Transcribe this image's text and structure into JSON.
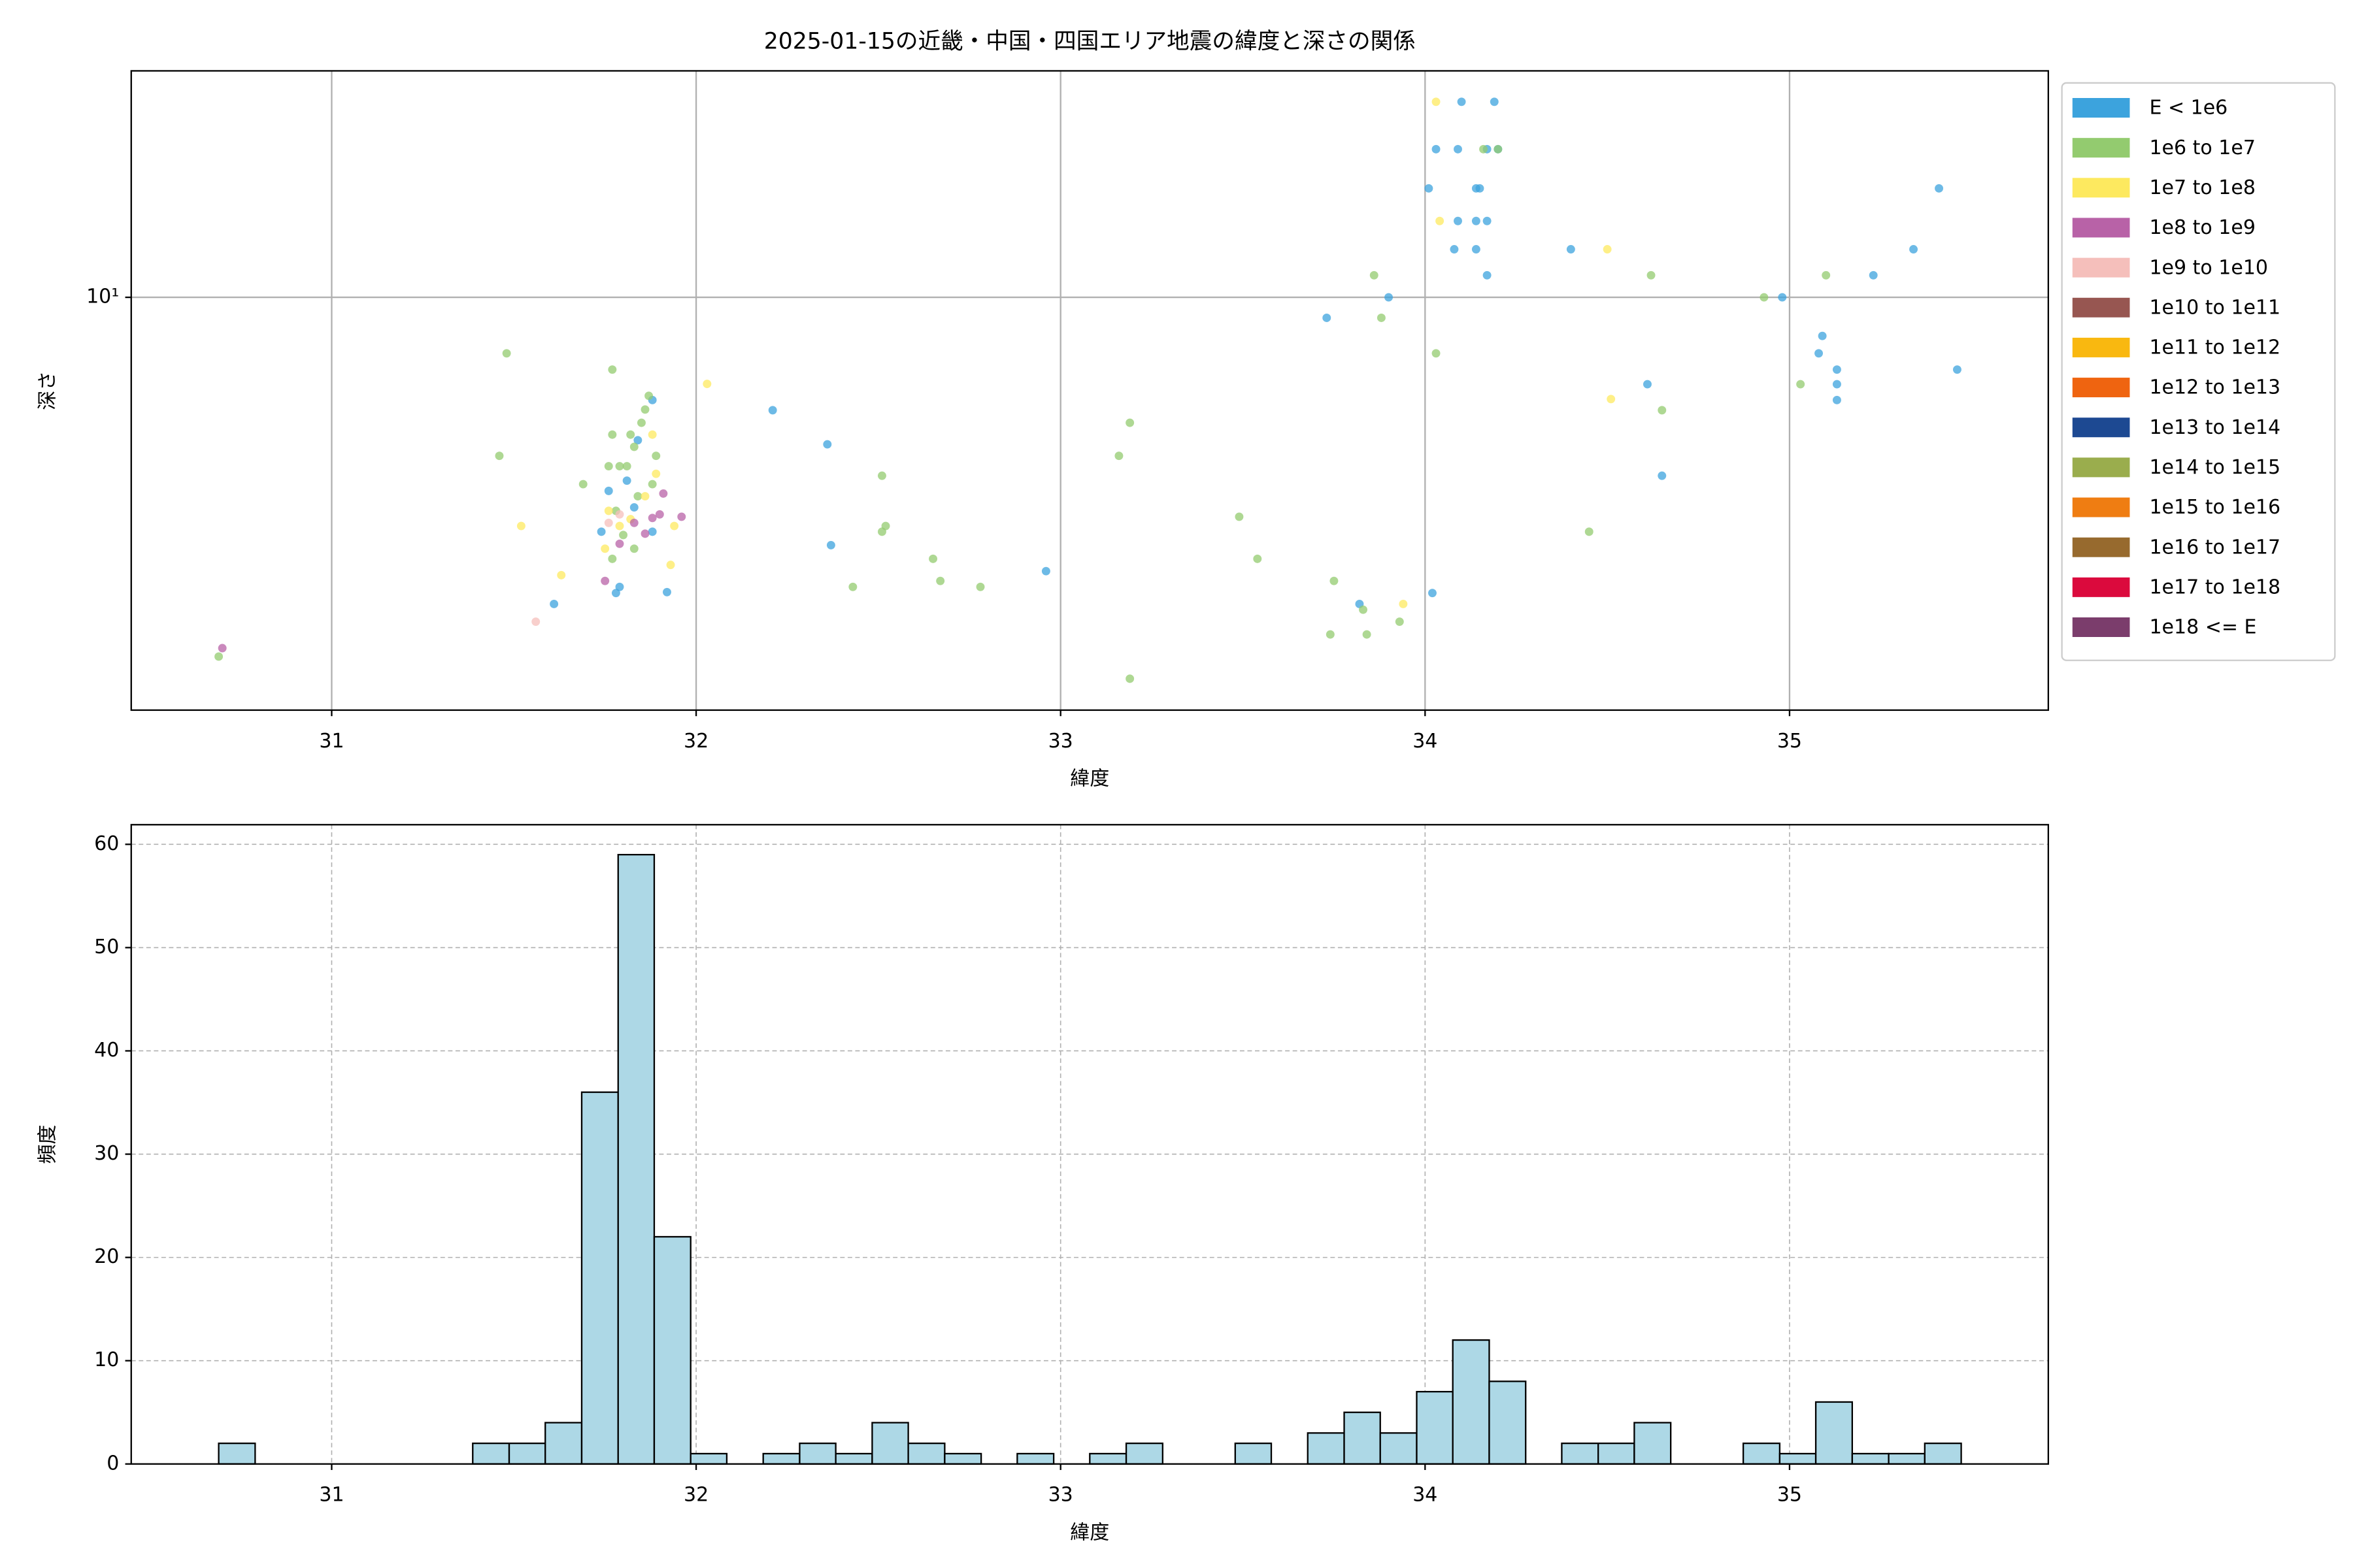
{
  "chart_data": [
    {
      "type": "scatter",
      "title": "2025-01-15の近畿・中国・四国エリア地震の緯度と深さの関係",
      "xlabel": "緯度",
      "ylabel": "深さ",
      "xlim": [
        30.45,
        35.71
      ],
      "xticks": [
        31,
        32,
        33,
        34,
        35
      ],
      "ylim": [
        1.2,
        32
      ],
      "ylog": true,
      "yticks": [
        {
          "value": 10,
          "label": "10¹"
        }
      ],
      "grid": true,
      "grid_style": "solid",
      "legend_loc": "outside upper right",
      "series": [
        {
          "name": "E < 1e6",
          "color": "#3ca3dd",
          "x": [
            34.1,
            34.19,
            34.03,
            34.09,
            34.17,
            34.2,
            34.01,
            34.14,
            34.15,
            34.09,
            34.14,
            34.17,
            34.08,
            34.14,
            34.4,
            34.17,
            33.9,
            33.73,
            35.41,
            35.34,
            35.23,
            34.98,
            35.09,
            35.08,
            35.13,
            35.46,
            35.13,
            35.13,
            34.61,
            32.21,
            32.36,
            34.65,
            32.37,
            32.96,
            34.02,
            33.82,
            31.61,
            31.79,
            31.78,
            31.88,
            31.84,
            31.83,
            31.76,
            31.74,
            31.88,
            31.92,
            31.81
          ],
          "values": [
            27.3,
            27.3,
            21.4,
            21.4,
            21.4,
            21.4,
            17.5,
            17.5,
            17.5,
            14.8,
            14.8,
            14.8,
            12.8,
            12.8,
            12.8,
            11.2,
            10.0,
            9.0,
            17.5,
            12.8,
            11.2,
            10.0,
            8.2,
            7.5,
            6.9,
            6.9,
            6.4,
            5.9,
            6.4,
            5.6,
            4.7,
            4.0,
            2.8,
            2.45,
            2.19,
            2.07,
            2.07,
            2.26,
            2.19,
            5.9,
            4.8,
            3.4,
            3.7,
            3.0,
            3.0,
            2.2,
            3.9
          ]
        },
        {
          "name": "1e6 to 1e7",
          "color": "#93cb6f",
          "x": [
            34.16,
            34.2,
            33.86,
            34.62,
            35.1,
            34.93,
            33.88,
            34.03,
            35.03,
            34.65,
            33.19,
            33.16,
            32.51,
            33.49,
            34.45,
            32.52,
            32.51,
            32.65,
            33.54,
            32.67,
            32.43,
            32.78,
            33.75,
            33.83,
            33.93,
            33.74,
            33.84,
            33.19,
            31.48,
            31.77,
            31.46,
            30.69,
            31.69,
            31.77,
            31.82,
            31.83,
            31.86,
            31.87,
            31.85,
            31.79,
            31.76,
            31.81,
            31.84,
            31.78,
            31.8,
            31.77,
            31.83,
            31.89,
            31.88
          ],
          "values": [
            21.4,
            21.4,
            11.2,
            11.2,
            11.2,
            10.0,
            9.0,
            7.5,
            6.4,
            5.6,
            5.25,
            4.43,
            4.0,
            3.24,
            3.0,
            3.09,
            3.0,
            2.61,
            2.61,
            2.33,
            2.26,
            2.26,
            2.33,
            2.01,
            1.89,
            1.77,
            1.77,
            1.41,
            7.5,
            6.9,
            4.43,
            1.58,
            3.83,
            4.94,
            4.94,
            4.64,
            5.62,
            6.03,
            5.25,
            4.2,
            4.2,
            4.2,
            3.6,
            3.34,
            2.95,
            2.61,
            2.75,
            4.43,
            3.83
          ]
        },
        {
          "name": "1e7 to 1e8",
          "color": "#fde95f",
          "x": [
            34.03,
            34.04,
            34.5,
            34.51,
            33.94,
            32.03,
            31.52,
            31.63,
            31.93,
            31.88,
            31.89,
            31.76,
            31.79,
            31.75,
            31.82,
            31.86,
            31.94
          ],
          "values": [
            27.3,
            14.8,
            12.8,
            5.93,
            2.07,
            6.41,
            3.09,
            2.4,
            2.53,
            4.94,
            4.04,
            3.34,
            3.09,
            2.75,
            3.2,
            3.6,
            3.09
          ]
        },
        {
          "name": "1e8 to 1e9",
          "color": "#b862a7",
          "x": [
            30.7,
            31.75,
            31.79,
            31.86,
            31.9,
            31.96,
            31.91,
            31.88,
            31.83
          ],
          "values": [
            1.65,
            2.33,
            2.82,
            2.97,
            3.28,
            3.24,
            3.65,
            3.22,
            3.14
          ]
        },
        {
          "name": "1e9 to 1e10",
          "color": "#f5bfbb",
          "x": [
            31.56,
            31.76,
            31.79
          ],
          "values": [
            1.89,
            3.14,
            3.28
          ]
        },
        {
          "name": "1e10 to 1e11",
          "color": "#975651",
          "x": [],
          "values": []
        },
        {
          "name": "1e11 to 1e12",
          "color": "#f9b810",
          "x": [],
          "values": []
        },
        {
          "name": "1e12 to 1e13",
          "color": "#ef6410",
          "x": [],
          "values": []
        },
        {
          "name": "1e13 to 1e14",
          "color": "#1d4992",
          "x": [],
          "values": []
        },
        {
          "name": "1e14 to 1e15",
          "color": "#9aad4d",
          "x": [],
          "values": []
        },
        {
          "name": "1e15 to 1e16",
          "color": "#ef7d12",
          "x": [],
          "values": []
        },
        {
          "name": "1e16 to 1e17",
          "color": "#976a2e",
          "x": [],
          "values": []
        },
        {
          "name": "1e17 to 1e18",
          "color": "#db0a3d",
          "x": [],
          "values": []
        },
        {
          "name": "1e18 <= E",
          "color": "#7b3d6c",
          "x": [],
          "values": []
        }
      ]
    },
    {
      "type": "histogram",
      "xlabel": "緯度",
      "ylabel": "頻度",
      "xlim": [
        30.45,
        35.71
      ],
      "xticks": [
        31,
        32,
        33,
        34,
        35
      ],
      "ylim": [
        0,
        61.9
      ],
      "yticks": [
        0,
        10,
        20,
        30,
        40,
        50,
        60
      ],
      "grid": true,
      "grid_style": "dashed",
      "color": "#add8e6",
      "bins": [
        30.69,
        30.79,
        30.889,
        30.989,
        31.088,
        31.188,
        31.288,
        31.387,
        31.487,
        31.586,
        31.686,
        31.786,
        31.885,
        31.985,
        32.084,
        32.184,
        32.284,
        32.383,
        32.483,
        32.582,
        32.682,
        32.782,
        32.881,
        32.981,
        33.08,
        33.18,
        33.28,
        33.379,
        33.479,
        33.578,
        33.678,
        33.778,
        33.877,
        33.977,
        34.076,
        34.176,
        34.276,
        34.375,
        34.475,
        34.574,
        34.674,
        34.774,
        34.873,
        34.973,
        35.072,
        35.172,
        35.272,
        35.371,
        35.471
      ],
      "values": [
        2,
        0,
        0,
        0,
        0,
        0,
        0,
        2,
        2,
        4,
        36,
        59,
        22,
        1,
        0,
        1,
        2,
        1,
        4,
        2,
        1,
        0,
        1,
        0,
        1,
        2,
        0,
        0,
        2,
        0,
        3,
        5,
        3,
        7,
        12,
        8,
        0,
        2,
        2,
        4,
        0,
        0,
        2,
        1,
        6,
        1,
        1,
        2
      ]
    }
  ]
}
